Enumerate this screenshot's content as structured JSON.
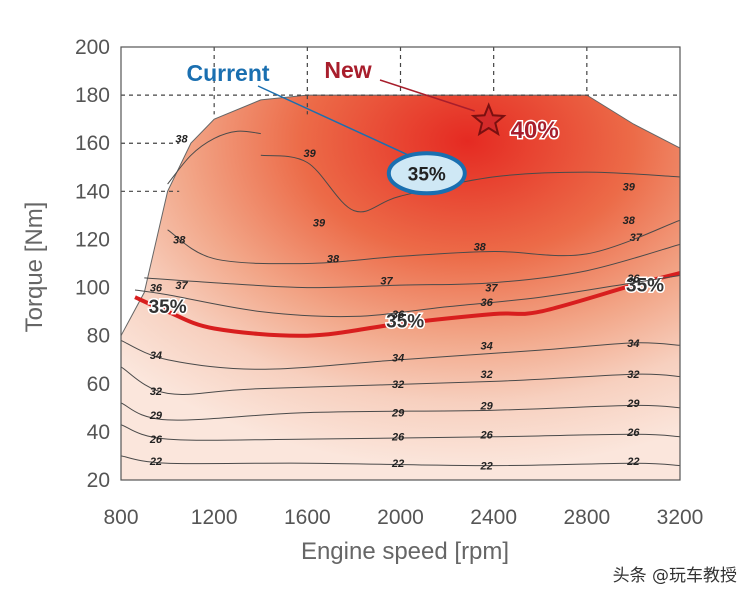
{
  "chart_data": {
    "type": "contour",
    "xlabel": "Engine speed [rpm]",
    "ylabel": "Torque [Nm]",
    "xlim": [
      800,
      3200
    ],
    "ylim": [
      20,
      200
    ],
    "xticks": [
      800,
      1200,
      1600,
      2000,
      2400,
      2800,
      3200
    ],
    "yticks": [
      20,
      40,
      60,
      80,
      100,
      120,
      140,
      160,
      180,
      200
    ],
    "grid_above": 180,
    "envelope": [
      [
        800,
        80
      ],
      [
        900,
        98
      ],
      [
        1000,
        140
      ],
      [
        1100,
        160
      ],
      [
        1200,
        170
      ],
      [
        1400,
        178
      ],
      [
        1600,
        180
      ],
      [
        2800,
        180
      ],
      [
        3000,
        168
      ],
      [
        3200,
        158
      ]
    ],
    "contours": [
      {
        "level": "22",
        "points": [
          [
            800,
            30
          ],
          [
            1000,
            27
          ],
          [
            1600,
            27
          ],
          [
            2400,
            26
          ],
          [
            3000,
            27
          ],
          [
            3200,
            26
          ]
        ],
        "labels": [
          [
            950,
            28
          ],
          [
            1990,
            27
          ],
          [
            2370,
            26
          ],
          [
            3000,
            28
          ]
        ]
      },
      {
        "level": "26",
        "points": [
          [
            800,
            43
          ],
          [
            1000,
            37
          ],
          [
            1600,
            37
          ],
          [
            2400,
            38
          ],
          [
            3000,
            39
          ],
          [
            3200,
            38
          ]
        ],
        "labels": [
          [
            950,
            37
          ],
          [
            1990,
            38
          ],
          [
            2370,
            39
          ],
          [
            3000,
            40
          ]
        ]
      },
      {
        "level": "29",
        "points": [
          [
            800,
            52
          ],
          [
            1000,
            45
          ],
          [
            1600,
            48
          ],
          [
            2400,
            49
          ],
          [
            3000,
            51
          ],
          [
            3200,
            50
          ]
        ],
        "labels": [
          [
            950,
            47
          ],
          [
            1990,
            48
          ],
          [
            2370,
            51
          ],
          [
            3000,
            52
          ]
        ]
      },
      {
        "level": "32",
        "points": [
          [
            800,
            67
          ],
          [
            1000,
            56
          ],
          [
            1400,
            58
          ],
          [
            2400,
            61
          ],
          [
            3000,
            64
          ],
          [
            3200,
            63
          ]
        ],
        "labels": [
          [
            950,
            57
          ],
          [
            1990,
            60
          ],
          [
            2370,
            64
          ],
          [
            3000,
            64
          ]
        ]
      },
      {
        "level": "34",
        "points": [
          [
            800,
            78
          ],
          [
            1000,
            70
          ],
          [
            1400,
            66
          ],
          [
            2000,
            70
          ],
          [
            2600,
            74
          ],
          [
            3000,
            77
          ],
          [
            3200,
            76
          ]
        ],
        "labels": [
          [
            950,
            72
          ],
          [
            1990,
            71
          ],
          [
            2370,
            76
          ],
          [
            3000,
            77
          ]
        ]
      },
      {
        "level": "35%",
        "points": [
          [
            860,
            96
          ],
          [
            1000,
            90
          ],
          [
            1200,
            83
          ],
          [
            1600,
            80
          ],
          [
            2000,
            85
          ],
          [
            2400,
            89
          ],
          [
            2600,
            90
          ],
          [
            3000,
            101
          ],
          [
            3200,
            106
          ]
        ],
        "highlight": true,
        "labels": [
          [
            1000,
            91
          ],
          [
            2020,
            85
          ],
          [
            3050,
            100
          ]
        ]
      },
      {
        "level": "36",
        "points": [
          [
            860,
            99
          ],
          [
            1000,
            97
          ],
          [
            1400,
            90
          ],
          [
            1800,
            88
          ],
          [
            2200,
            92
          ],
          [
            2600,
            96
          ],
          [
            3000,
            102
          ],
          [
            3200,
            105
          ]
        ],
        "labels": [
          [
            950,
            100
          ],
          [
            1990,
            89
          ],
          [
            2370,
            94
          ],
          [
            3000,
            104
          ]
        ]
      },
      {
        "level": "37",
        "points": [
          [
            900,
            104
          ],
          [
            1200,
            102
          ],
          [
            1600,
            100
          ],
          [
            2000,
            101
          ],
          [
            2400,
            102
          ],
          [
            2800,
            107
          ],
          [
            3200,
            118
          ]
        ],
        "labels": [
          [
            1060,
            101
          ],
          [
            1940,
            103
          ],
          [
            2390,
            100
          ],
          [
            3010,
            121
          ]
        ]
      },
      {
        "level": "38",
        "points": [
          [
            1000,
            124
          ],
          [
            1200,
            112
          ],
          [
            1600,
            110
          ],
          [
            2000,
            113
          ],
          [
            2400,
            115
          ],
          [
            2800,
            114
          ],
          [
            3200,
            128
          ]
        ],
        "labels": [
          [
            1050,
            120
          ],
          [
            1710,
            112
          ],
          [
            2340,
            117
          ],
          [
            2980,
            128
          ]
        ]
      },
      {
        "level": "38",
        "points": [
          [
            1000,
            143
          ],
          [
            1100,
            155
          ],
          [
            1200,
            162
          ],
          [
            1300,
            165
          ],
          [
            1400,
            164
          ]
        ],
        "labels": [
          [
            1060,
            162
          ]
        ]
      },
      {
        "level": "39",
        "points": [
          [
            1400,
            155
          ],
          [
            1600,
            152
          ],
          [
            1800,
            132
          ],
          [
            2000,
            138
          ],
          [
            2400,
            146
          ],
          [
            2800,
            148
          ],
          [
            3200,
            146
          ]
        ],
        "labels": [
          [
            1610,
            156
          ],
          [
            1650,
            127
          ],
          [
            2130,
            141
          ],
          [
            2980,
            142
          ]
        ]
      }
    ],
    "annotations": [
      {
        "text": "35%",
        "type": "ellipse",
        "x": 2100,
        "y": 150,
        "label": "Current"
      },
      {
        "text": "40%",
        "type": "star",
        "x": 2400,
        "y": 168,
        "label": "New"
      }
    ]
  },
  "labels": {
    "current": "Current",
    "new": "New",
    "current_value": "35%",
    "new_value": "40%"
  },
  "colors": {
    "current": "#1a6fb0",
    "new": "#a81e2c",
    "highlight": "#d81e1e"
  },
  "watermark": "头条 @玩车教授"
}
